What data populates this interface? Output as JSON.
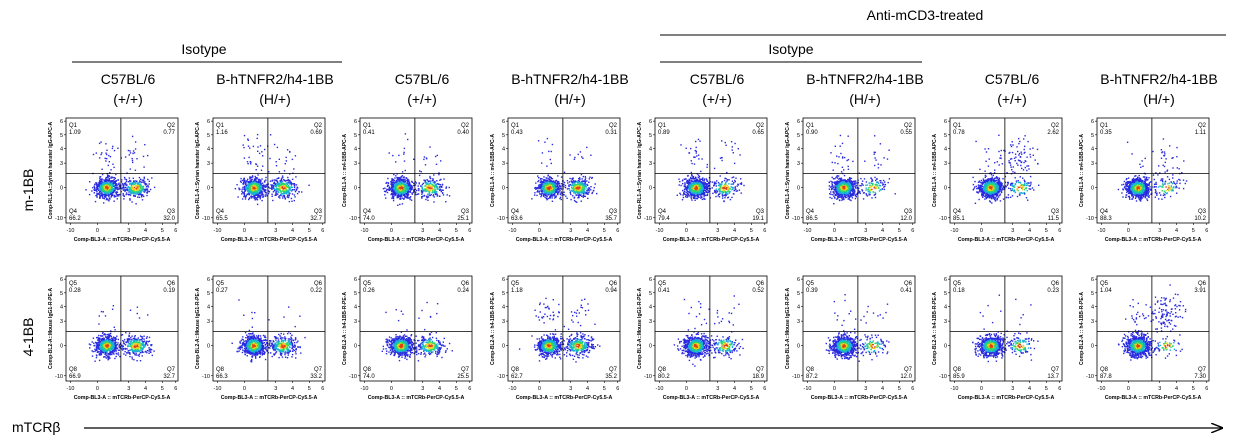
{
  "header": {
    "treatment_label": "Anti-mCD3-treated",
    "isotype_label": "Isotype",
    "row_labels": [
      "m-1BB",
      "4-1BB"
    ],
    "x_axis_arrow_label": "mTCRβ"
  },
  "groups": [
    {
      "strain": "C57BL/6",
      "genotype": "(+/+)"
    },
    {
      "strain": "B-hTNFR2/h4-1BB",
      "genotype": "(H/+)"
    },
    {
      "strain": "C57BL/6",
      "genotype": "(+/+)"
    },
    {
      "strain": "B-hTNFR2/h4-1BB",
      "genotype": "(H/+)"
    },
    {
      "strain": "C57BL/6",
      "genotype": "(+/+)"
    },
    {
      "strain": "B-hTNFR2/h4-1BB",
      "genotype": "(H/+)"
    },
    {
      "strain": "C57BL/6",
      "genotype": "(+/+)"
    },
    {
      "strain": "B-hTNFR2/h4-1BB",
      "genotype": "(H/+)"
    }
  ],
  "x_ticks": [
    "-10",
    "0",
    "3",
    "4",
    "5",
    "6"
  ],
  "y_ticks": [
    "6",
    "5",
    "4",
    "3",
    "0",
    "-10"
  ],
  "colors": {
    "density_low": "#2a2adf",
    "density_mid": "#18b0d8",
    "density_mid2": "#2ed868",
    "density_high": "#f0d020",
    "density_peak": "#e04010",
    "gate_line": "#000000"
  },
  "chart_data": [
    {
      "type": "scatter",
      "row": "m-1BB",
      "panel": 1,
      "xlabel": "Comp-BL3-A :: mTCRb-PerCP-Cy5.5-A",
      "ylabel": "Comp-RL1-A::Syrian hamster IgG-APC-A",
      "quadrants": [
        {
          "name": "Q1",
          "value": "1.09"
        },
        {
          "name": "Q2",
          "value": "0.77"
        },
        {
          "name": "Q3",
          "value": "32.0"
        },
        {
          "name": "Q4",
          "value": "66.2"
        }
      ]
    },
    {
      "type": "scatter",
      "row": "m-1BB",
      "panel": 2,
      "xlabel": "Comp-BL3-A :: mTCRb-PerCP-Cy5.5-A",
      "ylabel": "Comp-RL1-A::Syrian hamster IgG-APC-A",
      "quadrants": [
        {
          "name": "Q1",
          "value": "1.16"
        },
        {
          "name": "Q2",
          "value": "0.69"
        },
        {
          "name": "Q3",
          "value": "32.7"
        },
        {
          "name": "Q4",
          "value": "65.5"
        }
      ]
    },
    {
      "type": "scatter",
      "row": "m-1BB",
      "panel": 3,
      "xlabel": "Comp-BL3-A :: mTCRb-PerCP-Cy5.5-A",
      "ylabel": "Comp-RL1-A :: m4-1BB-APC-A",
      "quadrants": [
        {
          "name": "Q1",
          "value": "0.41"
        },
        {
          "name": "Q2",
          "value": "0.40"
        },
        {
          "name": "Q3",
          "value": "25.1"
        },
        {
          "name": "Q4",
          "value": "74.0"
        }
      ]
    },
    {
      "type": "scatter",
      "row": "m-1BB",
      "panel": 4,
      "xlabel": "Comp-BL3-A :: mTCRb-PerCP-Cy5.5-A",
      "ylabel": "Comp-RL1-A :: m4-1BB-APC-A",
      "quadrants": [
        {
          "name": "Q1",
          "value": "0.43"
        },
        {
          "name": "Q2",
          "value": "0.31"
        },
        {
          "name": "Q3",
          "value": "35.7"
        },
        {
          "name": "Q4",
          "value": "63.6"
        }
      ]
    },
    {
      "type": "scatter",
      "row": "m-1BB",
      "panel": 5,
      "xlabel": "Comp-BL3-A :: mTCRb-PerCP-Cy5.5-A",
      "ylabel": "Comp-RL1-A::Syrian hamster IgG-APC-A",
      "quadrants": [
        {
          "name": "Q1",
          "value": "0.89"
        },
        {
          "name": "Q2",
          "value": "0.65"
        },
        {
          "name": "Q3",
          "value": "19.1"
        },
        {
          "name": "Q4",
          "value": "79.4"
        }
      ]
    },
    {
      "type": "scatter",
      "row": "m-1BB",
      "panel": 6,
      "xlabel": "Comp-BL3-A :: mTCRb-PerCP-Cy5.5-A",
      "ylabel": "Comp-RL1-A::Syrian hamster IgG-APC-A",
      "quadrants": [
        {
          "name": "Q1",
          "value": "0.90"
        },
        {
          "name": "Q2",
          "value": "0.55"
        },
        {
          "name": "Q3",
          "value": "12.0"
        },
        {
          "name": "Q4",
          "value": "86.5"
        }
      ]
    },
    {
      "type": "scatter",
      "row": "m-1BB",
      "panel": 7,
      "xlabel": "Comp-BL3-A :: mTCRb-PerCP-Cy5.5-A",
      "ylabel": "Comp-RL1-A :: m4-1BB-APC-A",
      "quadrants": [
        {
          "name": "Q1",
          "value": "0.78"
        },
        {
          "name": "Q2",
          "value": "2.62"
        },
        {
          "name": "Q3",
          "value": "11.5"
        },
        {
          "name": "Q4",
          "value": "85.1"
        }
      ]
    },
    {
      "type": "scatter",
      "row": "m-1BB",
      "panel": 8,
      "xlabel": "Comp-BL3-A :: mTCRb-PerCP-Cy5.5-A",
      "ylabel": "Comp-RL1-A :: m4-1BB-APC-A",
      "quadrants": [
        {
          "name": "Q1",
          "value": "0.35"
        },
        {
          "name": "Q2",
          "value": "1.11"
        },
        {
          "name": "Q3",
          "value": "10.2"
        },
        {
          "name": "Q4",
          "value": "88.3"
        }
      ]
    },
    {
      "type": "scatter",
      "row": "4-1BB",
      "panel": 1,
      "xlabel": "Comp-BL3-A :: mTCRb-PerCP-Cy5.5-A",
      "ylabel": "Comp-BL2-A::Mouse IgG1-R-PE-A",
      "quadrants": [
        {
          "name": "Q5",
          "value": "0.28"
        },
        {
          "name": "Q6",
          "value": "0.19"
        },
        {
          "name": "Q7",
          "value": "32.7"
        },
        {
          "name": "Q8",
          "value": "66.9"
        }
      ]
    },
    {
      "type": "scatter",
      "row": "4-1BB",
      "panel": 2,
      "xlabel": "Comp-BL3-A :: mTCRb-PerCP-Cy5.5-A",
      "ylabel": "Comp-BL2-A::Mouse IgG1-R-PE-A",
      "quadrants": [
        {
          "name": "Q5",
          "value": "0.27"
        },
        {
          "name": "Q6",
          "value": "0.22"
        },
        {
          "name": "Q7",
          "value": "33.2"
        },
        {
          "name": "Q8",
          "value": "66.3"
        }
      ]
    },
    {
      "type": "scatter",
      "row": "4-1BB",
      "panel": 3,
      "xlabel": "Comp-BL3-A :: mTCRb-PerCP-Cy5.5-A",
      "ylabel": "Comp-BL2-A :: h4-1BB-R-PE-A",
      "quadrants": [
        {
          "name": "Q5",
          "value": "0.26"
        },
        {
          "name": "Q6",
          "value": "0.24"
        },
        {
          "name": "Q7",
          "value": "25.5"
        },
        {
          "name": "Q8",
          "value": "74.0"
        }
      ]
    },
    {
      "type": "scatter",
      "row": "4-1BB",
      "panel": 4,
      "xlabel": "Comp-BL3-A :: mTCRb-PerCP-Cy5.5-A",
      "ylabel": "Comp-BL2-A :: h4-1BB-R-PE-A",
      "quadrants": [
        {
          "name": "Q5",
          "value": "1.18"
        },
        {
          "name": "Q6",
          "value": "0.94"
        },
        {
          "name": "Q7",
          "value": "35.2"
        },
        {
          "name": "Q8",
          "value": "62.7"
        }
      ]
    },
    {
      "type": "scatter",
      "row": "4-1BB",
      "panel": 5,
      "xlabel": "Comp-BL3-A :: mTCRb-PerCP-Cy5.5-A",
      "ylabel": "Comp-BL2-A::Mouse IgG1-R-PE-A",
      "quadrants": [
        {
          "name": "Q5",
          "value": "0.41"
        },
        {
          "name": "Q6",
          "value": "0.52"
        },
        {
          "name": "Q7",
          "value": "18.9"
        },
        {
          "name": "Q8",
          "value": "80.2"
        }
      ]
    },
    {
      "type": "scatter",
      "row": "4-1BB",
      "panel": 6,
      "xlabel": "Comp-BL3-A :: mTCRb-PerCP-Cy5.5-A",
      "ylabel": "Comp-BL2-A::Mouse IgG1-R-PE-A",
      "quadrants": [
        {
          "name": "Q5",
          "value": "0.39"
        },
        {
          "name": "Q6",
          "value": "0.41"
        },
        {
          "name": "Q7",
          "value": "12.0"
        },
        {
          "name": "Q8",
          "value": "87.2"
        }
      ]
    },
    {
      "type": "scatter",
      "row": "4-1BB",
      "panel": 7,
      "xlabel": "Comp-BL3-A :: mTCRb-PerCP-Cy5.5-A",
      "ylabel": "Comp-BL2-A :: h4-1BB-R-PE-A",
      "quadrants": [
        {
          "name": "Q5",
          "value": "0.18"
        },
        {
          "name": "Q6",
          "value": "0.23"
        },
        {
          "name": "Q7",
          "value": "13.7"
        },
        {
          "name": "Q8",
          "value": "85.9"
        }
      ]
    },
    {
      "type": "scatter",
      "row": "4-1BB",
      "panel": 8,
      "xlabel": "Comp-BL3-A :: mTCRb-PerCP-Cy5.5-A",
      "ylabel": "Comp-BL2-A :: h4-1BB-R-PE-A",
      "quadrants": [
        {
          "name": "Q5",
          "value": "1.04"
        },
        {
          "name": "Q6",
          "value": "3.91"
        },
        {
          "name": "Q7",
          "value": "7.30"
        },
        {
          "name": "Q8",
          "value": "87.8"
        }
      ]
    }
  ]
}
